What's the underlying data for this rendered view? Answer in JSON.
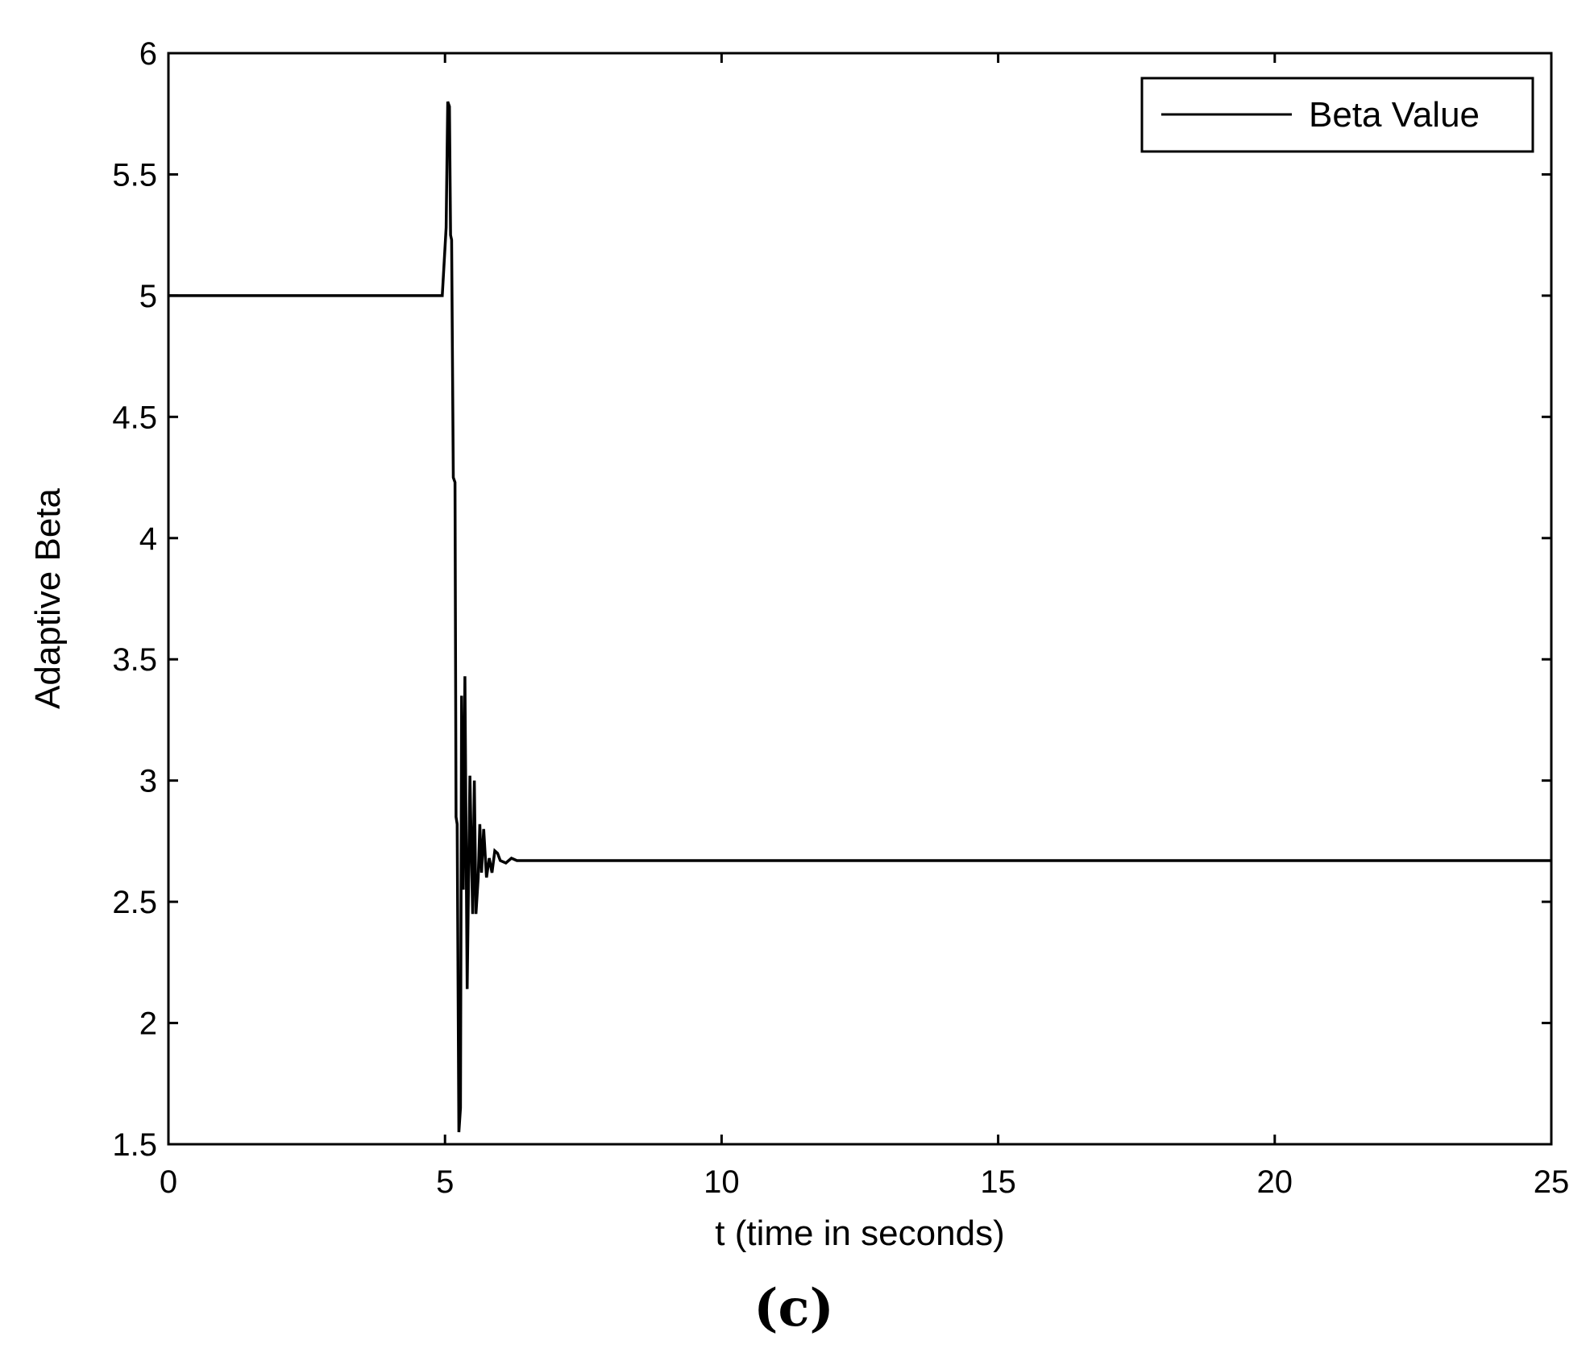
{
  "chart_data": {
    "type": "line",
    "xlabel": "t (time in seconds)",
    "ylabel": "Adaptive Beta",
    "xlim": [
      0,
      25
    ],
    "ylim": [
      1.5,
      6
    ],
    "xticks": [
      0,
      5,
      10,
      15,
      20,
      25
    ],
    "yticks": [
      1.5,
      2,
      2.5,
      3,
      3.5,
      4,
      4.5,
      5,
      5.5,
      6
    ],
    "xtick_labels": [
      "0",
      "5",
      "10",
      "15",
      "20",
      "25"
    ],
    "ytick_labels": [
      "1.5",
      "2",
      "2.5",
      "3",
      "3.5",
      "4",
      "4.5",
      "5",
      "5.5",
      "6"
    ],
    "grid": false,
    "legend_position": "top-right",
    "series": [
      {
        "name": "Beta Value",
        "color": "#000000",
        "x": [
          0,
          4.9,
          4.95,
          5.02,
          5.05,
          5.08,
          5.1,
          5.12,
          5.15,
          5.18,
          5.2,
          5.22,
          5.25,
          5.28,
          5.3,
          5.33,
          5.36,
          5.4,
          5.45,
          5.5,
          5.53,
          5.56,
          5.6,
          5.63,
          5.66,
          5.7,
          5.75,
          5.8,
          5.85,
          5.9,
          5.95,
          6.0,
          6.1,
          6.2,
          6.3,
          6.4,
          25
        ],
        "y": [
          5.0,
          5.0,
          5.0,
          5.28,
          5.8,
          5.78,
          5.25,
          5.23,
          4.25,
          4.23,
          2.85,
          2.82,
          1.55,
          1.65,
          3.35,
          2.55,
          3.43,
          2.14,
          3.02,
          2.45,
          3.0,
          2.45,
          2.6,
          2.82,
          2.62,
          2.8,
          2.6,
          2.68,
          2.62,
          2.71,
          2.7,
          2.67,
          2.66,
          2.68,
          2.67,
          2.67,
          2.67
        ]
      }
    ],
    "annotations": [
      "(c)"
    ]
  }
}
